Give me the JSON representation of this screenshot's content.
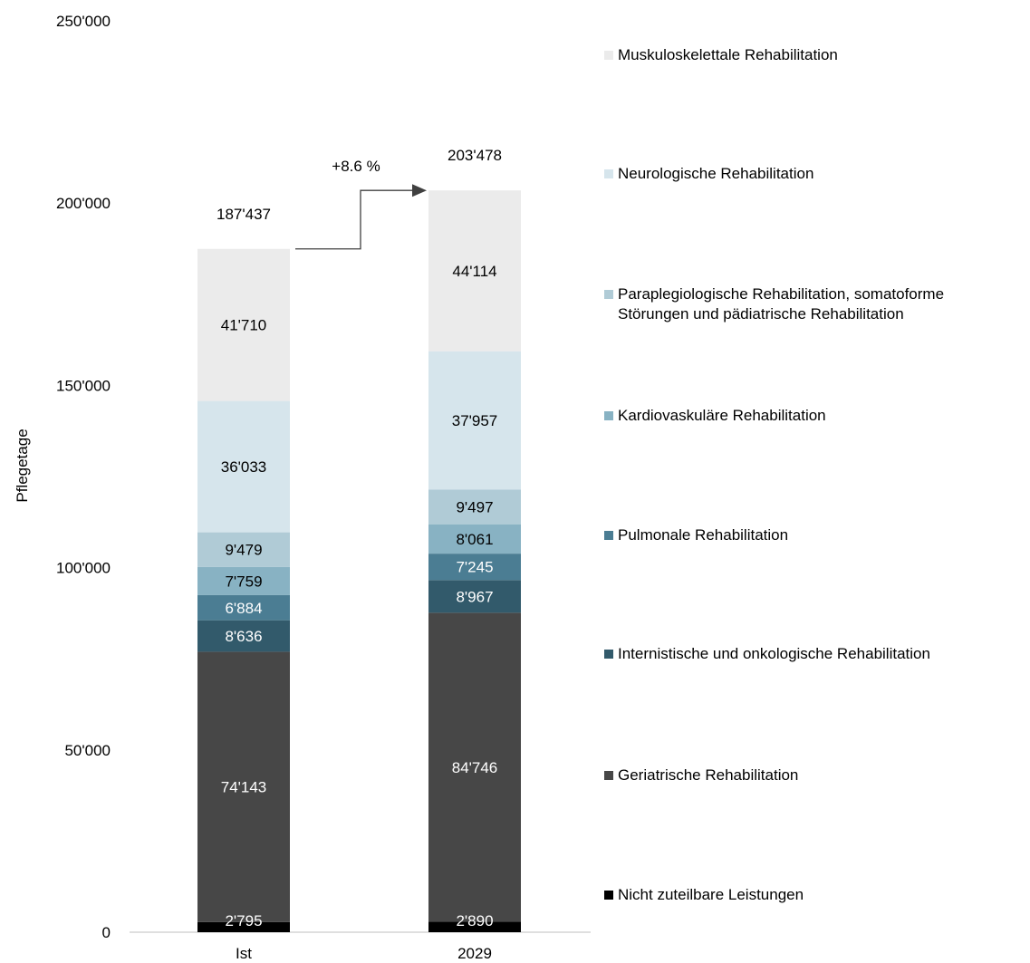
{
  "chart_data": {
    "type": "bar",
    "stacked": true,
    "categories": [
      "Ist",
      "2029"
    ],
    "ylabel": "Pflegetage",
    "ylim": [
      0,
      250000
    ],
    "yticks": [
      0,
      50000,
      100000,
      150000,
      200000,
      250000
    ],
    "ytick_labels": [
      "0",
      "50'000",
      "100'000",
      "150'000",
      "200'000",
      "250'000"
    ],
    "series": [
      {
        "name": "Nicht zuteilbare Leistungen",
        "values": [
          2795,
          2890
        ],
        "labels": [
          "2'795",
          "2'890"
        ],
        "color": "#000000",
        "text_color": "#ffffff"
      },
      {
        "name": "Geriatrische Rehabilitation",
        "values": [
          74143,
          84746
        ],
        "labels": [
          "74'143",
          "84'746"
        ],
        "color": "#474747",
        "text_color": "#ffffff"
      },
      {
        "name": "Internistische und onkologische Rehabilitation",
        "values": [
          8636,
          8967
        ],
        "labels": [
          "8'636",
          "8'967"
        ],
        "color": "#325a6b",
        "text_color": "#ffffff"
      },
      {
        "name": "Pulmonale Rehabilitation",
        "values": [
          6884,
          7245
        ],
        "labels": [
          "6'884",
          "7'245"
        ],
        "color": "#4b7d93",
        "text_color": "#ffffff"
      },
      {
        "name": "Kardiovaskuläre Rehabilitation",
        "values": [
          7759,
          8061
        ],
        "labels": [
          "7'759",
          "8'061"
        ],
        "color": "#88b2c3",
        "text_color": "#000000"
      },
      {
        "name": "Paraplegiologische Rehabilitation, somatoforme Störungen und pädiatrische Rehabilitation",
        "legend_lines": [
          "Paraplegiologische Rehabilitation, somatoforme",
          "Störungen und pädiatrische Rehabilitation"
        ],
        "values": [
          9479,
          9497
        ],
        "labels": [
          "9'479",
          "9'497"
        ],
        "color": "#b0cbd6",
        "text_color": "#000000"
      },
      {
        "name": "Neurologische Rehabilitation",
        "values": [
          36033,
          37957
        ],
        "labels": [
          "36'033",
          "37'957"
        ],
        "color": "#d6e5ec",
        "text_color": "#000000"
      },
      {
        "name": "Muskuloskelettale Rehabilitation",
        "values": [
          41710,
          44114
        ],
        "labels": [
          "41'710",
          "44'114"
        ],
        "color": "#ebebeb",
        "text_color": "#000000"
      }
    ],
    "totals": [
      187437,
      203478
    ],
    "total_labels": [
      "187'437",
      "203'478"
    ],
    "growth_annotation": "+8.6 %",
    "legend_position": "right",
    "grid": false
  }
}
